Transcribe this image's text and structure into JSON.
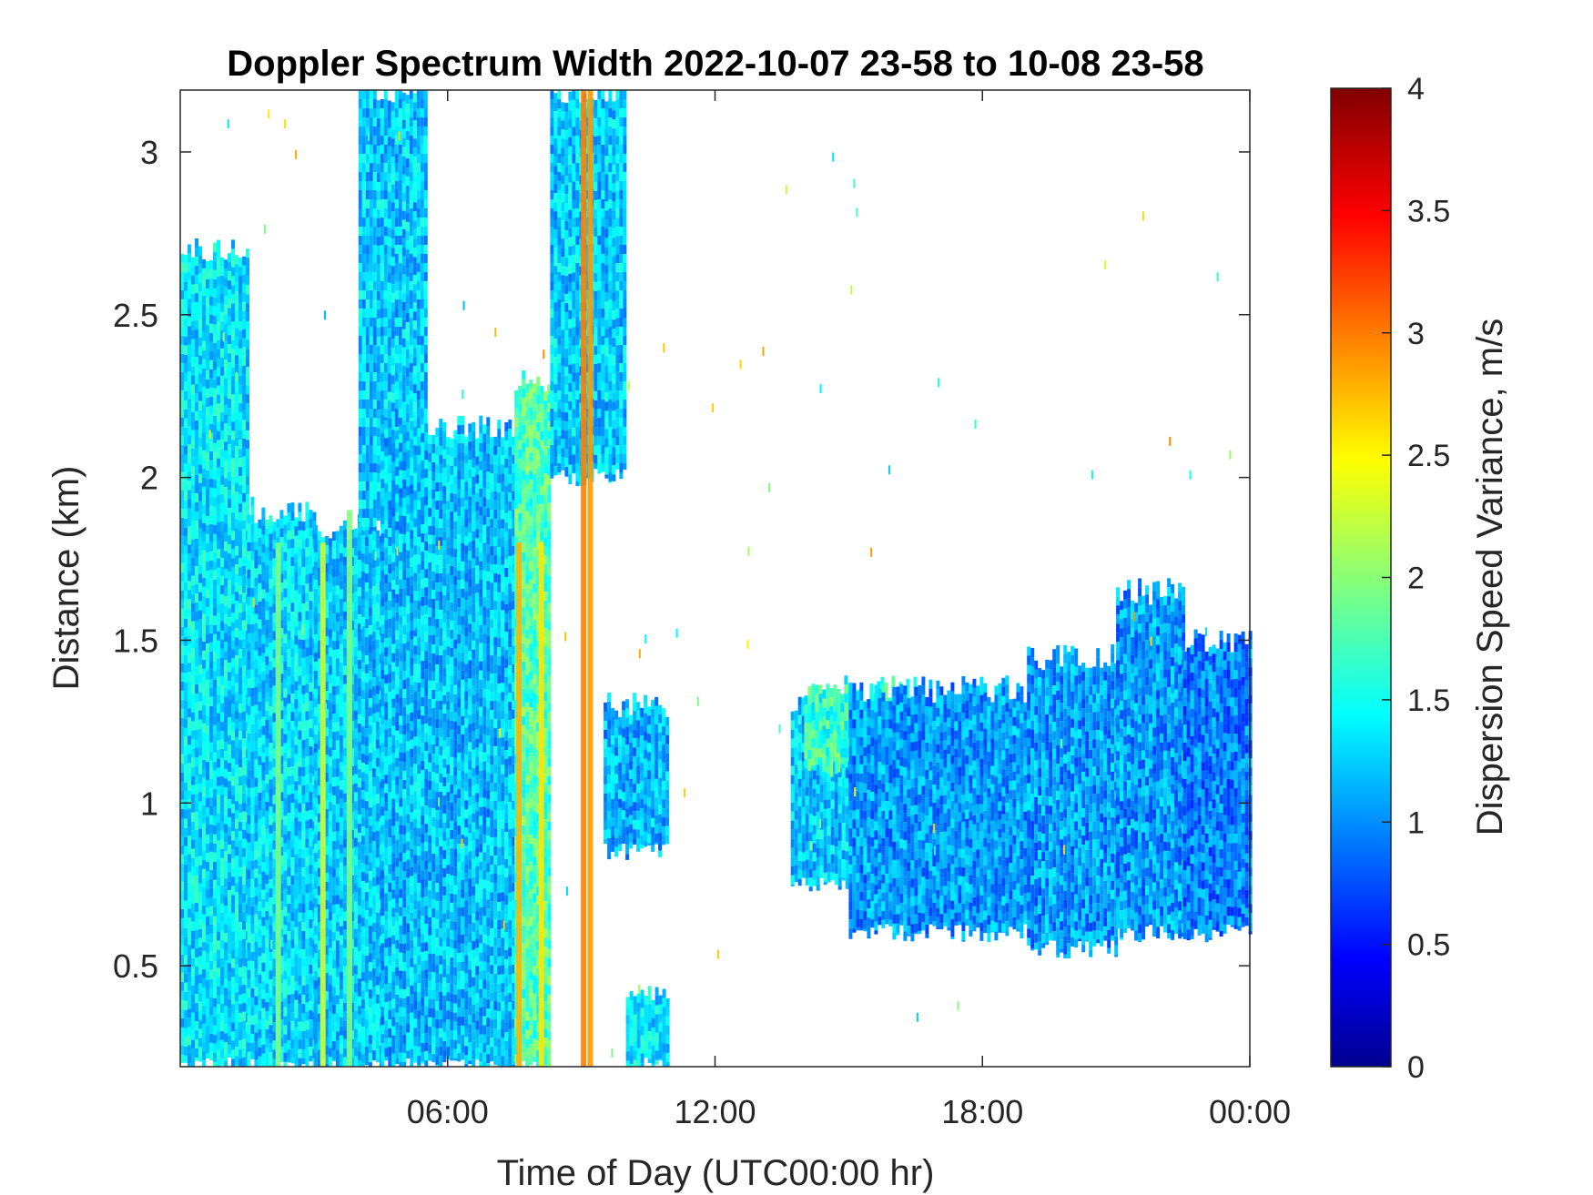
{
  "chart_data": {
    "type": "heatmap",
    "title": "Doppler Spectrum Width 2022-10-07 23-58 to 10-08 23-58",
    "xlabel": "Time of Day (UTC00:00 hr)",
    "ylabel": "Distance (km)",
    "x_unit": "hours",
    "xlim": [
      0,
      24
    ],
    "ylim": [
      0.19,
      3.19
    ],
    "x_ticks": [
      {
        "value": 6,
        "label": "06:00"
      },
      {
        "value": 12,
        "label": "12:00"
      },
      {
        "value": 18,
        "label": "18:00"
      },
      {
        "value": 24,
        "label": "00:00"
      }
    ],
    "y_ticks": [
      {
        "value": 0.5,
        "label": "0.5"
      },
      {
        "value": 1.0,
        "label": "1"
      },
      {
        "value": 1.5,
        "label": "1.5"
      },
      {
        "value": 2.0,
        "label": "2"
      },
      {
        "value": 2.5,
        "label": "2.5"
      },
      {
        "value": 3.0,
        "label": "3"
      }
    ],
    "colorbar": {
      "label": "Dispersion Speed Variance, m/s",
      "colormap": "jet",
      "range": [
        0,
        4
      ],
      "ticks": [
        {
          "value": 0,
          "label": "0"
        },
        {
          "value": 0.5,
          "label": "0.5"
        },
        {
          "value": 1,
          "label": "1"
        },
        {
          "value": 1.5,
          "label": "1.5"
        },
        {
          "value": 2,
          "label": "2"
        },
        {
          "value": 2.5,
          "label": "2.5"
        },
        {
          "value": 3,
          "label": "3"
        },
        {
          "value": 3.5,
          "label": "3.5"
        },
        {
          "value": 4,
          "label": "4"
        }
      ]
    },
    "regions": [
      {
        "x": [
          0.0,
          1.5
        ],
        "y": [
          0.19,
          2.7
        ],
        "value": 1.4
      },
      {
        "x": [
          1.5,
          3.0
        ],
        "y": [
          0.19,
          1.9
        ],
        "value": 1.35
      },
      {
        "x": [
          3.0,
          4.5
        ],
        "y": [
          0.19,
          1.85
        ],
        "value": 1.3
      },
      {
        "x": [
          4.0,
          5.5
        ],
        "y": [
          1.85,
          3.19
        ],
        "value": 1.3
      },
      {
        "x": [
          4.5,
          7.5
        ],
        "y": [
          0.19,
          2.15
        ],
        "value": 1.25
      },
      {
        "x": [
          7.5,
          8.3
        ],
        "y": [
          0.19,
          2.3
        ],
        "value": 1.8
      },
      {
        "x": [
          8.3,
          10.0
        ],
        "y": [
          2.0,
          3.19
        ],
        "value": 1.3
      },
      {
        "x": [
          9.5,
          10.9
        ],
        "y": [
          0.85,
          1.3
        ],
        "value": 1.2
      },
      {
        "x": [
          10.0,
          10.9
        ],
        "y": [
          0.19,
          0.4
        ],
        "value": 1.4
      },
      {
        "x": [
          13.7,
          15.0
        ],
        "y": [
          0.75,
          1.3
        ],
        "value": 1.3
      },
      {
        "x": [
          14.0,
          16.5
        ],
        "y": [
          1.1,
          1.35
        ],
        "value": 1.7
      },
      {
        "x": [
          15.0,
          19.0
        ],
        "y": [
          0.6,
          1.35
        ],
        "value": 1.1
      },
      {
        "x": [
          19.0,
          21.0
        ],
        "y": [
          0.55,
          1.45
        ],
        "value": 1.1
      },
      {
        "x": [
          21.0,
          22.5
        ],
        "y": [
          0.6,
          1.65
        ],
        "value": 1.1
      },
      {
        "x": [
          22.5,
          24.0
        ],
        "y": [
          0.6,
          1.5
        ],
        "value": 1.0
      }
    ],
    "streaks": [
      {
        "x": 2.2,
        "y": [
          0.19,
          1.8
        ],
        "value": 2.0
      },
      {
        "x": 3.2,
        "y": [
          0.19,
          1.8
        ],
        "value": 2.3
      },
      {
        "x": 3.8,
        "y": [
          0.19,
          1.9
        ],
        "value": 2.0
      },
      {
        "x": 7.6,
        "y": [
          0.19,
          1.8
        ],
        "value": 2.8
      },
      {
        "x": 8.1,
        "y": [
          0.19,
          1.8
        ],
        "value": 2.6
      },
      {
        "x": 9.05,
        "y": [
          0.19,
          3.19
        ],
        "value": 3.0
      },
      {
        "x": 9.2,
        "y": [
          0.19,
          3.19
        ],
        "value": 2.9
      }
    ]
  }
}
